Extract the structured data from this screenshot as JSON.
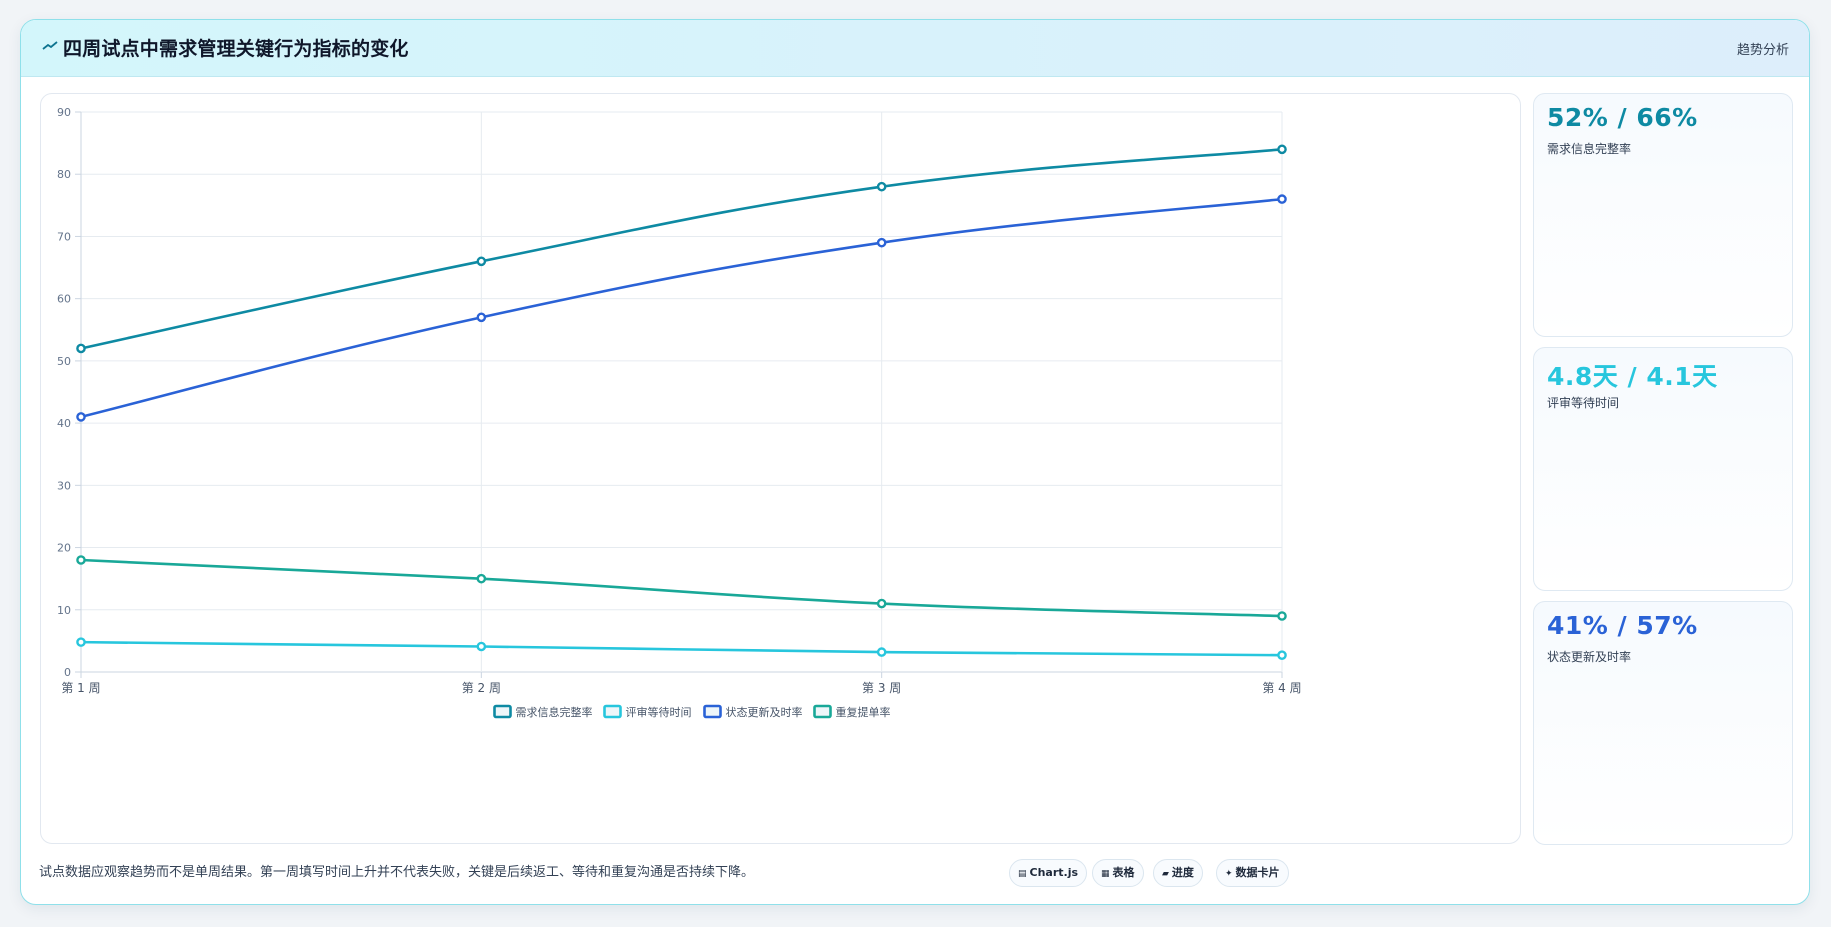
{
  "header": {
    "title": "四周试点中需求管理关键行为指标的变化",
    "tag": "趋势分析"
  },
  "stats": [
    {
      "value": "52% / 66%",
      "label": "需求信息完整率",
      "color": "#0e8aa3"
    },
    {
      "value": "4.8天 / 4.1天",
      "label": "评审等待时间",
      "color": "#27c6dd"
    },
    {
      "value": "41% / 57%",
      "label": "状态更新及时率",
      "color": "#2a62d6"
    }
  ],
  "footnote": "试点数据应观察趋势而不是单周结果。第一周填写时间上升并不代表失败，关键是后续返工、等待和重复沟通是否持续下降。",
  "chips": [
    {
      "icon": "chart-icon",
      "glyph": "▤",
      "label": "Chart.js"
    },
    {
      "icon": "table-icon",
      "glyph": "▦",
      "label": "表格"
    },
    {
      "icon": "progress-icon",
      "glyph": "▰",
      "label": "进度"
    },
    {
      "icon": "sparkle-icon",
      "glyph": "✦",
      "label": "数据卡片"
    }
  ],
  "chart_data": {
    "type": "line",
    "categories": [
      "第 1 周",
      "第 2 周",
      "第 3 周",
      "第 4 周"
    ],
    "ylim": [
      0,
      90
    ],
    "yticks": [
      0,
      10,
      20,
      30,
      40,
      50,
      60,
      70,
      80,
      90
    ],
    "grid": true,
    "legend": "bottom",
    "series": [
      {
        "name": "需求信息完整率",
        "color": "#0e8aa3",
        "values": [
          52,
          66,
          78,
          84
        ]
      },
      {
        "name": "评审等待时间",
        "color": "#27c6dd",
        "values": [
          4.8,
          4.1,
          3.2,
          2.7
        ]
      },
      {
        "name": "状态更新及时率",
        "color": "#2a62d6",
        "values": [
          41,
          57,
          69,
          76
        ]
      },
      {
        "name": "重复提单率",
        "color": "#19a898",
        "values": [
          18,
          15,
          11,
          9
        ]
      }
    ]
  }
}
